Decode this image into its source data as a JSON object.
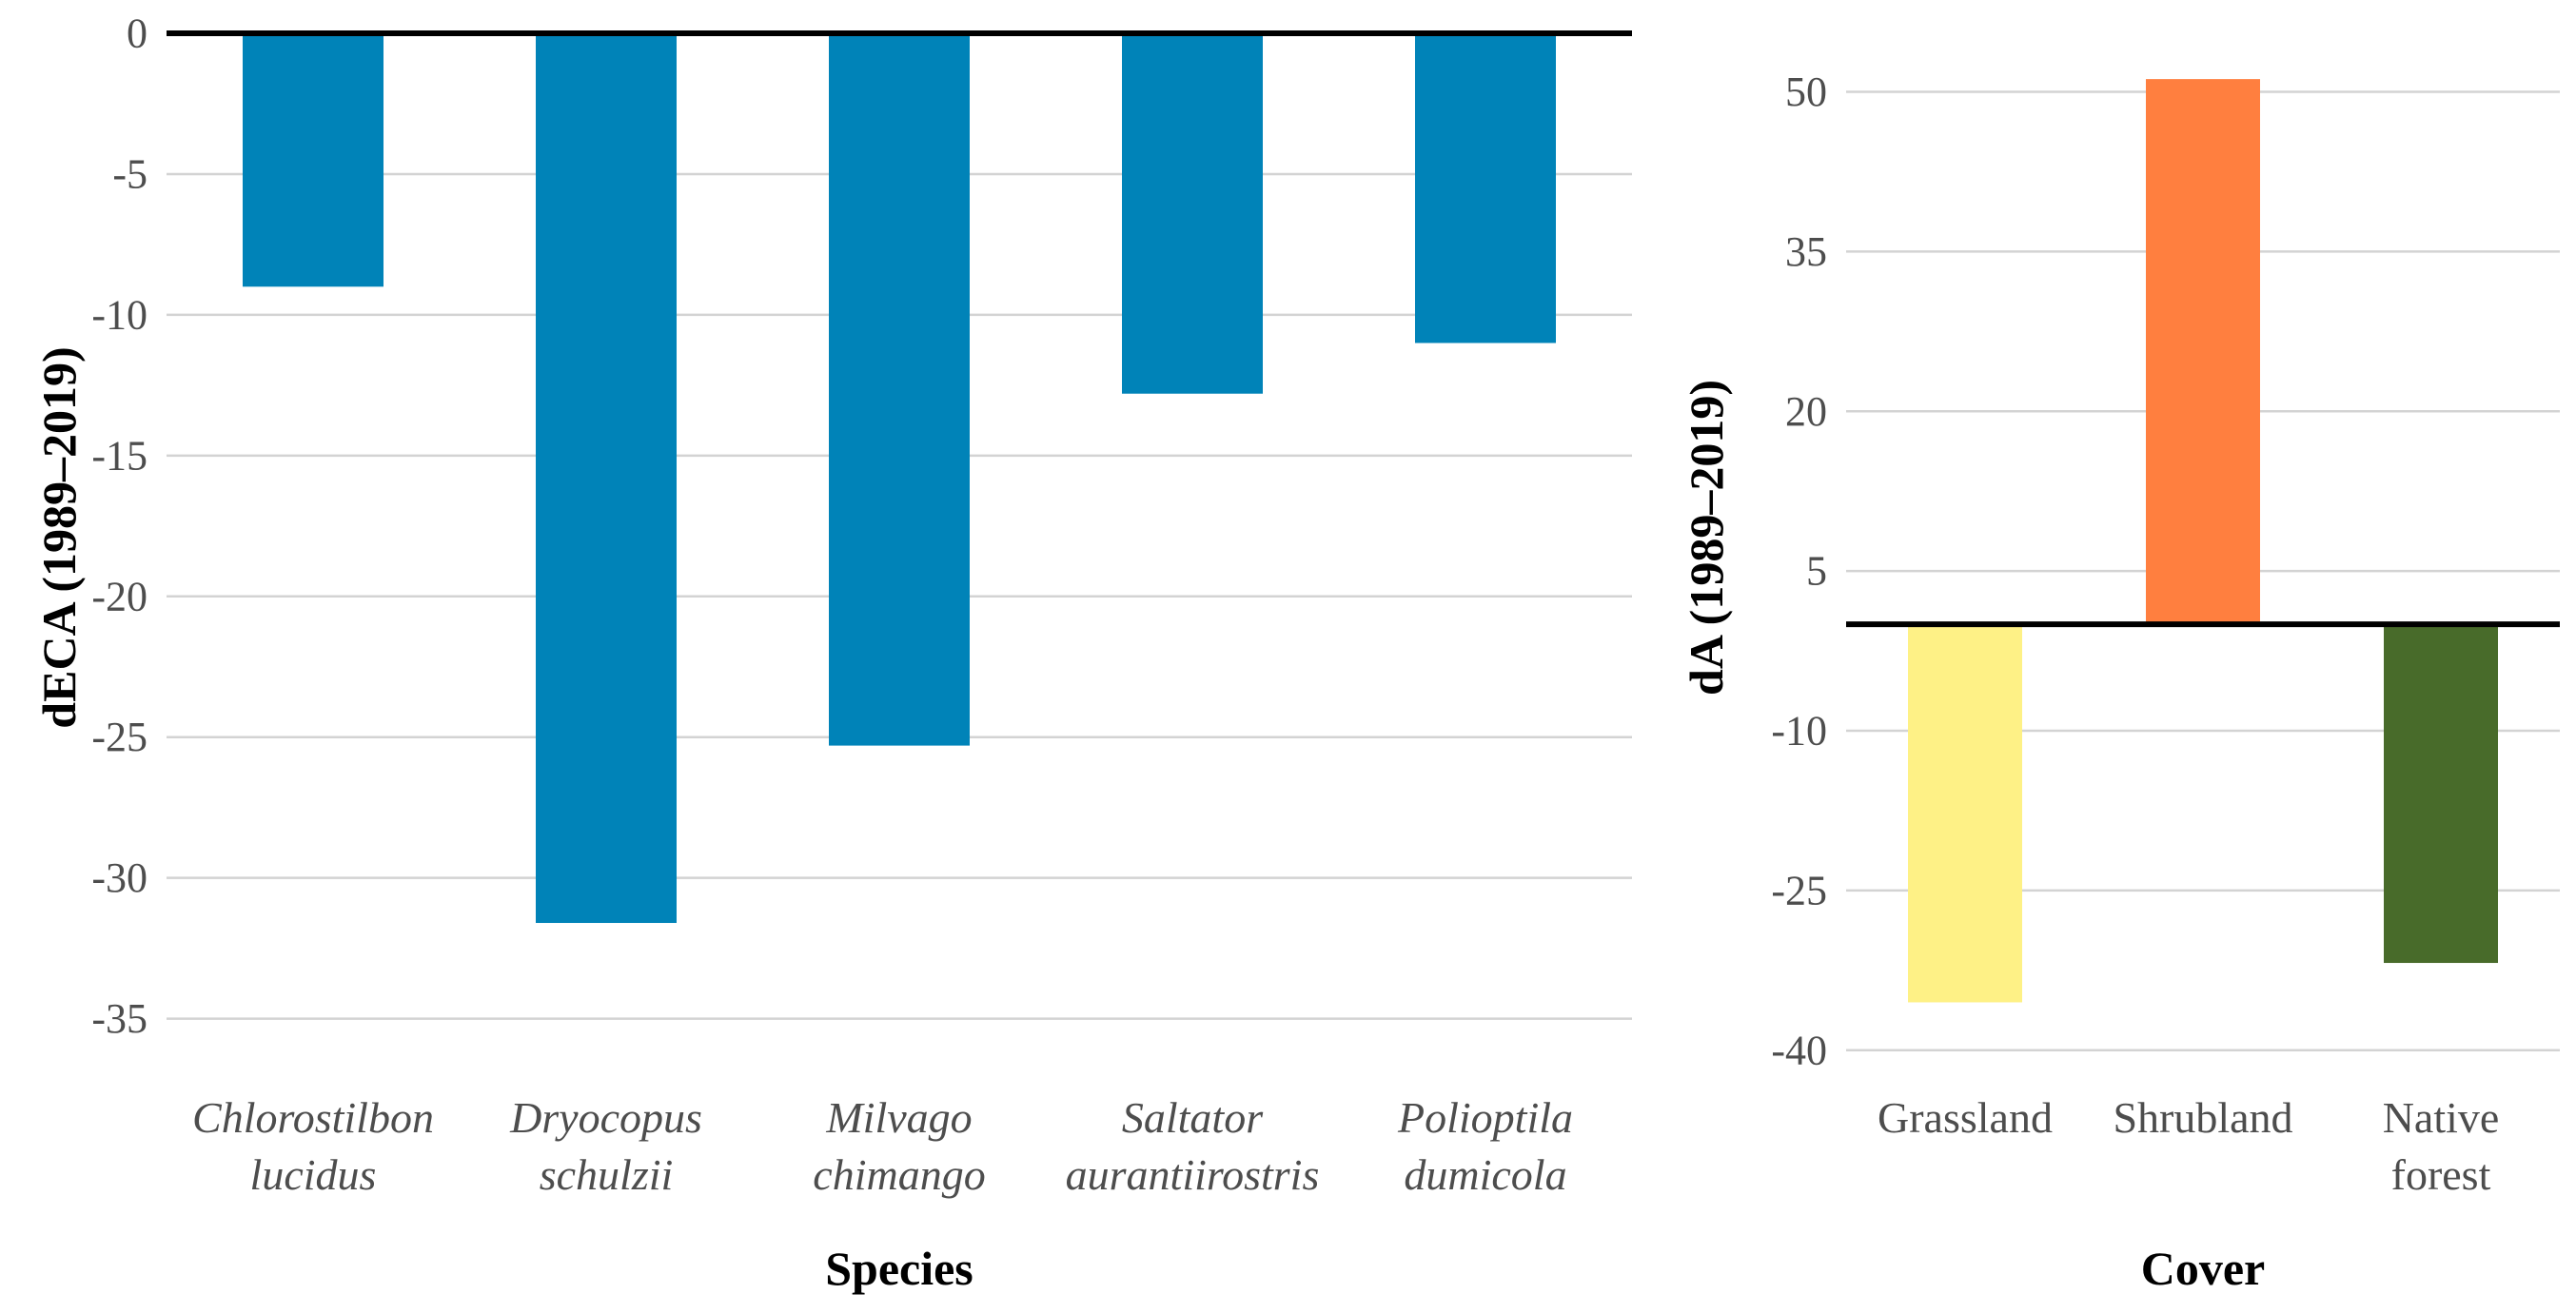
{
  "chart_data": [
    {
      "type": "bar",
      "xlabel": "Species",
      "ylabel": "dECA (1989–2019)",
      "ylim": [
        -36.5,
        0
      ],
      "yticks": [
        0,
        -5,
        -10,
        -15,
        -20,
        -25,
        -30,
        -35
      ],
      "categories": [
        [
          "Chlorostilbon",
          "lucidus"
        ],
        [
          "Dryocopus",
          "schulzii"
        ],
        [
          "Milvago",
          "chimango"
        ],
        [
          "Saltator",
          "aurantiirostris"
        ],
        [
          "Polioptila",
          "dumicola"
        ]
      ],
      "values": [
        -9.0,
        -31.6,
        -25.3,
        -12.8,
        -11.0
      ],
      "colors": [
        "#0083b8",
        "#0083b8",
        "#0083b8",
        "#0083b8",
        "#0083b8"
      ],
      "grid": true,
      "baseline": 0
    },
    {
      "type": "bar",
      "xlabel": "Cover",
      "ylabel": "dA (1989–2019)",
      "ylim": [
        -41,
        55.5
      ],
      "yticks": [
        50,
        35,
        20,
        5,
        -10,
        -25,
        -40
      ],
      "categories": [
        [
          "Grassland"
        ],
        [
          "Shrubland"
        ],
        [
          "Native",
          "forest"
        ]
      ],
      "values": [
        -35.5,
        51.2,
        -31.8
      ],
      "colors": [
        "#fef186",
        "#ff7f3f",
        "#486b2a"
      ],
      "grid": true,
      "baseline": 0
    }
  ]
}
